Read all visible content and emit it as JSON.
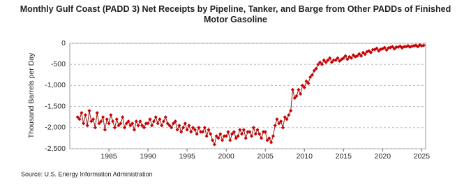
{
  "chart_data": {
    "type": "line",
    "title": "Monthly Gulf Coast (PADD 3) Net Receipts by Pipeline, Tanker, and Barge from Other PADDs of Finished Motor Gasoline",
    "y_label": "Thousand Barrels per Day",
    "source": "Source: U.S. Energy Information Administration",
    "xlim": [
      1980,
      2025.5
    ],
    "xticks": [
      1985,
      1990,
      1995,
      2000,
      2005,
      2010,
      2015,
      2020,
      2025
    ],
    "ylim": [
      -2500,
      0
    ],
    "yticks": [
      0,
      -500,
      {
        "value": -1000,
        "label": "-1,000"
      },
      {
        "value": -1500,
        "label": "-1,500"
      },
      {
        "value": -2000,
        "label": "-2,000"
      },
      {
        "value": -2500,
        "label": "-2,500"
      }
    ],
    "grid": true,
    "series": [
      {
        "name": "Net Receipts",
        "color": "#cc0000",
        "line_color": "#8b1a1a",
        "x": [
          1981,
          1981.25,
          1981.5,
          1981.75,
          1982,
          1982.25,
          1982.5,
          1982.75,
          1983,
          1983.25,
          1983.5,
          1983.75,
          1984,
          1984.25,
          1984.5,
          1984.75,
          1985,
          1985.25,
          1985.5,
          1985.75,
          1986,
          1986.25,
          1986.5,
          1986.75,
          1987,
          1987.25,
          1987.5,
          1987.75,
          1988,
          1988.25,
          1988.5,
          1988.75,
          1989,
          1989.25,
          1989.5,
          1989.75,
          1990,
          1990.25,
          1990.5,
          1990.75,
          1991,
          1991.25,
          1991.5,
          1991.75,
          1992,
          1992.25,
          1992.5,
          1992.75,
          1993,
          1993.25,
          1993.5,
          1993.75,
          1994,
          1994.25,
          1994.5,
          1994.75,
          1995,
          1995.25,
          1995.5,
          1995.75,
          1996,
          1996.25,
          1996.5,
          1996.75,
          1997,
          1997.25,
          1997.5,
          1997.75,
          1998,
          1998.25,
          1998.5,
          1998.75,
          1999,
          1999.25,
          1999.5,
          1999.75,
          2000,
          2000.25,
          2000.5,
          2000.75,
          2001,
          2001.25,
          2001.5,
          2001.75,
          2002,
          2002.25,
          2002.5,
          2002.75,
          2003,
          2003.25,
          2003.5,
          2003.75,
          2004,
          2004.25,
          2004.5,
          2004.75,
          2005,
          2005.25,
          2005.5,
          2005.75,
          2006,
          2006.25,
          2006.5,
          2006.75,
          2007,
          2007.25,
          2007.5,
          2007.75,
          2008,
          2008.25,
          2008.5,
          2008.75,
          2009,
          2009.25,
          2009.5,
          2009.75,
          2010,
          2010.25,
          2010.5,
          2010.75,
          2011,
          2011.25,
          2011.5,
          2011.75,
          2012,
          2012.25,
          2012.5,
          2012.75,
          2013,
          2013.25,
          2013.5,
          2013.75,
          2014,
          2014.25,
          2014.5,
          2014.75,
          2015,
          2015.25,
          2015.5,
          2015.75,
          2016,
          2016.25,
          2016.5,
          2016.75,
          2017,
          2017.25,
          2017.5,
          2017.75,
          2018,
          2018.25,
          2018.5,
          2018.75,
          2019,
          2019.25,
          2019.5,
          2019.75,
          2020,
          2020.25,
          2020.5,
          2020.75,
          2021,
          2021.25,
          2021.5,
          2021.75,
          2022,
          2022.25,
          2022.5,
          2022.75,
          2023,
          2023.25,
          2023.5,
          2023.75,
          2024,
          2024.25,
          2024.5,
          2024.75,
          2025,
          2025.25
        ],
        "values": [
          -1750,
          -1800,
          -1650,
          -1900,
          -1700,
          -1950,
          -1600,
          -1850,
          -1800,
          -2000,
          -1650,
          -1900,
          -1850,
          -1750,
          -2050,
          -1800,
          -1900,
          -1700,
          -1850,
          -2000,
          -1800,
          -1950,
          -1900,
          -1750,
          -2000,
          -1900,
          -1850,
          -1950,
          -1900,
          -2050,
          -1850,
          -1950,
          -1850,
          -1950,
          -2000,
          -1900,
          -1900,
          -1800,
          -1950,
          -1850,
          -1750,
          -1900,
          -1800,
          -1950,
          -1850,
          -1750,
          -1900,
          -1950,
          -2000,
          -1900,
          -1850,
          -2050,
          -1950,
          -2100,
          -2000,
          -1900,
          -2050,
          -1950,
          -2100,
          -2000,
          -2050,
          -2150,
          -2000,
          -2100,
          -2100,
          -2000,
          -2200,
          -2050,
          -2150,
          -2300,
          -2400,
          -2200,
          -2250,
          -2150,
          -2300,
          -2200,
          -2200,
          -2100,
          -2300,
          -2150,
          -2100,
          -2250,
          -2200,
          -2050,
          -2150,
          -2050,
          -2250,
          -2100,
          -2100,
          -2200,
          -2000,
          -2150,
          -2050,
          -2150,
          -2250,
          -2100,
          -2100,
          -2300,
          -2250,
          -2350,
          -2200,
          -1950,
          -1800,
          -1900,
          -1850,
          -2000,
          -1750,
          -1800,
          -1700,
          -1600,
          -1100,
          -1300,
          -1250,
          -1100,
          -1200,
          -1000,
          -1050,
          -900,
          -950,
          -800,
          -750,
          -650,
          -600,
          -500,
          -450,
          -500,
          -400,
          -450,
          -400,
          -350,
          -450,
          -400,
          -400,
          -350,
          -420,
          -380,
          -350,
          -300,
          -380,
          -320,
          -350,
          -280,
          -320,
          -300,
          -250,
          -300,
          -220,
          -260,
          -200,
          -180,
          -220,
          -150,
          -150,
          -120,
          -180,
          -140,
          -130,
          -100,
          -160,
          -110,
          -100,
          -80,
          -130,
          -90,
          -90,
          -70,
          -110,
          -80,
          -80,
          -60,
          -90,
          -70,
          -60,
          -50,
          -80,
          -40,
          -60,
          -50
        ]
      }
    ]
  }
}
